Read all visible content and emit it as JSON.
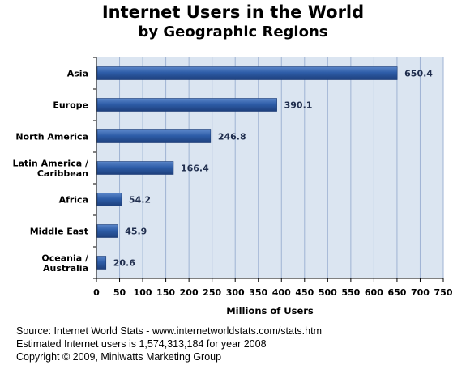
{
  "chart_data": {
    "type": "bar",
    "orientation": "horizontal",
    "title": "Internet Users in the World",
    "subtitle": "by Geographic Regions",
    "categories": [
      [
        "Asia"
      ],
      [
        "Europe"
      ],
      [
        "North America"
      ],
      [
        "Latin America /",
        "Caribbean"
      ],
      [
        "Africa"
      ],
      [
        "Middle East"
      ],
      [
        "Oceania  /",
        "Australia"
      ]
    ],
    "values": [
      650.4,
      390.1,
      246.8,
      166.4,
      54.2,
      45.9,
      20.6
    ],
    "value_labels": [
      "650.4",
      "390.1",
      "246.8",
      "166.4",
      "54.2",
      "45.9",
      "20.6"
    ],
    "xlabel": "Millions of Users",
    "ylabel": "",
    "xlim": [
      0,
      750
    ],
    "x_ticks": [
      0,
      50,
      100,
      150,
      200,
      250,
      300,
      350,
      400,
      450,
      500,
      550,
      600,
      650,
      700,
      750
    ],
    "grid": true,
    "legend": "none",
    "colors": {
      "plot_background": "#dbe5f1",
      "bar": "#2e5da8",
      "gridline": "#9fb3d4",
      "axis": "#000000",
      "label_text": "#1f2d4d"
    }
  },
  "footer": {
    "line1": "Source: Internet World Stats - www.internetworldstats.com/stats.htm",
    "line2": "Estimated Internet users is 1,574,313,184 for year 2008",
    "line3": "Copyright © 2009, Miniwatts Marketing Group"
  }
}
